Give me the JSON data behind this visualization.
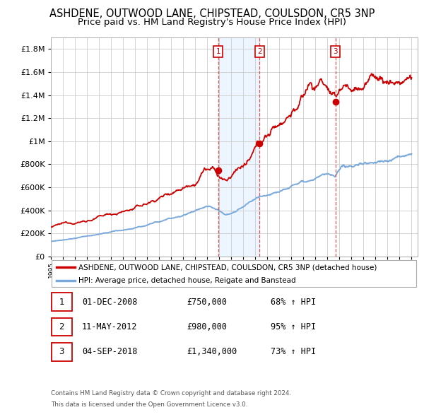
{
  "title": "ASHDENE, OUTWOOD LANE, CHIPSTEAD, COULSDON, CR5 3NP",
  "subtitle": "Price paid vs. HM Land Registry's House Price Index (HPI)",
  "legend_line1": "ASHDENE, OUTWOOD LANE, CHIPSTEAD, COULSDON, CR5 3NP (detached house)",
  "legend_line2": "HPI: Average price, detached house, Reigate and Banstead",
  "transactions": [
    {
      "num": 1,
      "date": "01-DEC-2008",
      "price": "£750,000",
      "hpi": "68% ↑ HPI",
      "year": 2008.917,
      "price_val": 750000
    },
    {
      "num": 2,
      "date": "11-MAY-2012",
      "price": "£980,000",
      "hpi": "95% ↑ HPI",
      "year": 2012.36,
      "price_val": 980000
    },
    {
      "num": 3,
      "date": "04-SEP-2018",
      "price": "£1,340,000",
      "hpi": "73% ↑ HPI",
      "year": 2018.67,
      "price_val": 1340000
    }
  ],
  "footnote1": "Contains HM Land Registry data © Crown copyright and database right 2024.",
  "footnote2": "This data is licensed under the Open Government Licence v3.0.",
  "ylim": [
    0,
    1900000
  ],
  "xlim_start": 1995.0,
  "xlim_end": 2025.5,
  "background_color": "#ffffff",
  "grid_color": "#cccccc",
  "red_color": "#cc0000",
  "blue_color": "#7aaadd",
  "shade_color": "#ddeeff",
  "vline_color": "#dd4444",
  "title_fontsize": 10.5,
  "subtitle_fontsize": 9.5,
  "yticks": [
    0,
    200000,
    400000,
    600000,
    800000,
    1000000,
    1200000,
    1400000,
    1600000,
    1800000
  ],
  "ytick_labels": [
    "£0",
    "£200K",
    "£400K",
    "£600K",
    "£800K",
    "£1M",
    "£1.2M",
    "£1.4M",
    "£1.6M",
    "£1.8M"
  ]
}
